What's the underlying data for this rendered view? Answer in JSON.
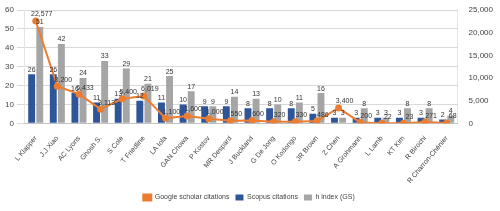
{
  "chart_data": {
    "type": "bar",
    "categories": [
      "L Klapper",
      "J.J Xiao",
      "AC Lyons",
      "Ghosh S.",
      "S Cole",
      "T Friedline",
      "LA Iola",
      "GAN Chowa",
      "P Kostov",
      "MR Despard",
      "J Buckland",
      "G De Jong",
      "O Kodongo",
      "JR Brown",
      "Z Chen",
      "A Grohmann",
      "L Lamb",
      "KT Kim",
      "R Birochi",
      "R Charron-Chénier"
    ],
    "series": [
      {
        "name": "Scopus citations",
        "type": "bar",
        "color": "#2e5597",
        "values": [
          26,
          26,
          16,
          11,
          13,
          12,
          11,
          10,
          9,
          9,
          8,
          8,
          8,
          5,
          3,
          3,
          3,
          3,
          3,
          2
        ]
      },
      {
        "name": "h index (GS)",
        "type": "bar",
        "color": "#a5a5a5",
        "values": [
          51,
          42,
          24,
          33,
          29,
          21,
          25,
          17,
          9,
          14,
          13,
          10,
          11,
          16,
          3,
          8,
          3,
          8,
          8,
          4
        ]
      },
      {
        "name": "Google scholar citations",
        "type": "line",
        "axis": "y2",
        "color": "#ed7d31",
        "marker": "circle",
        "line_style": "solid",
        "values": [
          22577,
          8200,
          6433,
          3113,
          5400,
          6019,
          1100,
          1600,
          1000,
          550,
          600,
          320,
          330,
          486,
          3400,
          200,
          22,
          23,
          271,
          68
        ],
        "value_labels": [
          "22,577",
          "8,200",
          "6,433",
          "3,113",
          "5,400",
          "6,019",
          "1,100",
          "1,600",
          "1,000",
          "550",
          "600",
          "320",
          "330",
          "486",
          "3,400",
          "200",
          "22",
          "23",
          "271",
          "68"
        ]
      }
    ],
    "ylim": [
      0,
      60
    ],
    "yticks": [
      0,
      10,
      20,
      30,
      40,
      50,
      60
    ],
    "y2lim": [
      0,
      25000
    ],
    "y2ticks": [
      0,
      {
        "value": 5000,
        "label": "5,000"
      },
      {
        "value": 10000,
        "label": "10,000"
      },
      {
        "value": 15000,
        "label": "15,000"
      },
      {
        "value": 20000,
        "label": "20,000"
      },
      {
        "value": 25000,
        "label": "25,000"
      }
    ],
    "grid": true,
    "legend": "bottom",
    "data_labels": true
  }
}
